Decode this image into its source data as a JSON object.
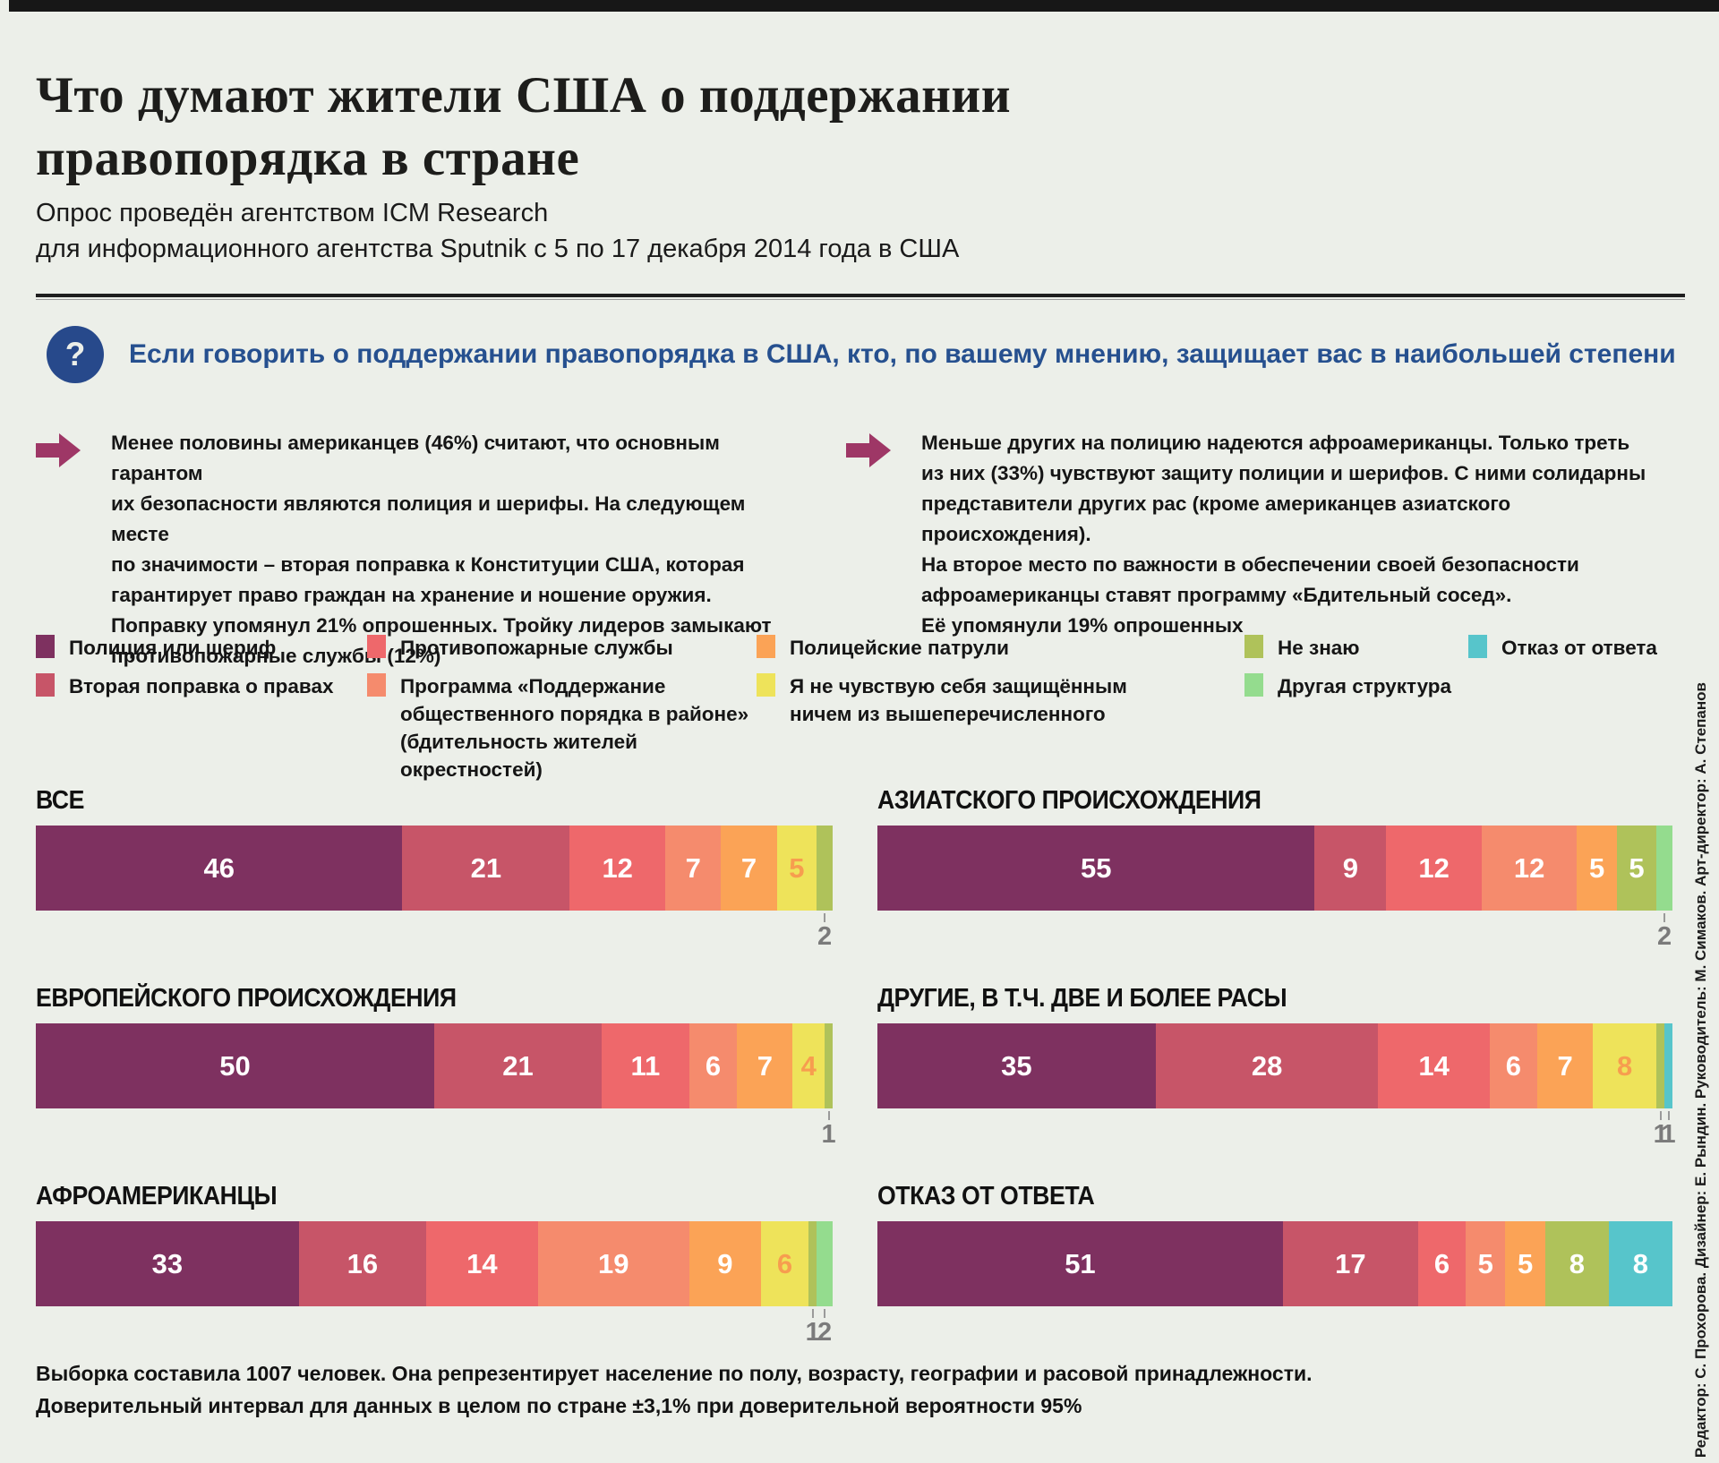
{
  "header": {
    "title_lines": [
      "Что думают жители США о поддержании",
      "правопорядка в стране"
    ],
    "subtitle_lines": [
      "Опрос проведён агентством ICM Research",
      "для информационного агентства Sputnik с 5 по 17 декабря 2014 года в США"
    ]
  },
  "question": {
    "icon": "?",
    "text": "Если говорить о поддержании правопорядка в США, кто, по вашему мнению, защищает вас в наибольшей степени"
  },
  "callouts": [
    {
      "lines": [
        "Менее половины американцев (46%) считают, что основным гарантом",
        "их безопасности являются полиция и шерифы. На следующем месте",
        "по значимости – вторая поправка к Конституции США, которая",
        "гарантирует право граждан на хранение и ношение оружия.",
        "Поправку упомянул 21% опрошенных. Тройку лидеров замыкают",
        "противопожарные службы (12%)"
      ]
    },
    {
      "lines": [
        "Меньше других на полицию надеются афроамериканцы. Только треть",
        "из них (33%) чувствуют защиту полиции и шерифов. С ними солидарны",
        "представители других рас (кроме американцев азиатского происхождения).",
        "На второе место по важности в обеспечении своей безопасности",
        "афроамериканцы ставят программу «Бдительный сосед».",
        "Её упомянули 19% опрошенных"
      ]
    }
  ],
  "colors": {
    "police": "#7e3160",
    "amendment": "#c75568",
    "fire": "#ee686b",
    "program": "#f58b6d",
    "patrol": "#fba356",
    "none": "#eee35a",
    "dontknow": "#afc25a",
    "other": "#94dc8e",
    "refuse": "#57c5cb",
    "value_on_dark": "#ffffff",
    "value_on_yellow": "#f79d4f",
    "value_below": "#7b7b7b",
    "question_blue": "#26508f",
    "arrow_magenta": "#9e3766"
  },
  "legend": {
    "columns": [
      [
        {
          "key": "police",
          "label_lines": [
            "Полиция или шериф"
          ]
        },
        {
          "key": "amendment",
          "label_lines": [
            "Вторая поправка о правах"
          ]
        }
      ],
      [
        {
          "key": "fire",
          "label_lines": [
            "Противопожарные службы"
          ]
        },
        {
          "key": "program",
          "label_lines": [
            "Программа «Поддержание",
            "общественного порядка в районе»",
            "(бдительность жителей окрестностей)"
          ]
        }
      ],
      [
        {
          "key": "patrol",
          "label_lines": [
            "Полицейские патрули"
          ]
        },
        {
          "key": "none",
          "label_lines": [
            "Я не чувствую себя защищённым",
            "ничем из вышеперечисленного"
          ]
        }
      ],
      [
        {
          "key": "dontknow",
          "label_lines": [
            "Не знаю"
          ]
        },
        {
          "key": "other",
          "label_lines": [
            "Другая структура"
          ]
        }
      ],
      [
        {
          "key": "refuse",
          "label_lines": [
            "Отказ от ответа"
          ]
        }
      ]
    ]
  },
  "chart_data": {
    "type": "bar",
    "stacked": true,
    "unit": "%",
    "axis": {
      "min": 0,
      "max": 100,
      "grid": false
    },
    "categories": [
      "Полиция или шериф",
      "Вторая поправка о правах",
      "Противопожарные службы",
      "Программа «Поддержание общественного порядка в районе» (бдительность жителей окрестностей)",
      "Полицейские патрули",
      "Я не чувствую себя защищённым ничем из вышеперечисленного",
      "Не знаю",
      "Другая структура",
      "Отказ от ответа"
    ],
    "category_keys": [
      "police",
      "amendment",
      "fire",
      "program",
      "patrol",
      "none",
      "dontknow",
      "other",
      "refuse"
    ],
    "groups": [
      {
        "label": "ВСЕ",
        "segments": [
          {
            "key": "police",
            "value": 46
          },
          {
            "key": "amendment",
            "value": 21
          },
          {
            "key": "fire",
            "value": 12
          },
          {
            "key": "program",
            "value": 7
          },
          {
            "key": "patrol",
            "value": 7
          },
          {
            "key": "none",
            "value": 5
          },
          {
            "key": "dontknow",
            "value": 2,
            "label_below": true
          }
        ]
      },
      {
        "label": "АЗИАТСКОГО ПРОИСХОЖДЕНИЯ",
        "segments": [
          {
            "key": "police",
            "value": 55
          },
          {
            "key": "amendment",
            "value": 9
          },
          {
            "key": "fire",
            "value": 12
          },
          {
            "key": "program",
            "value": 12
          },
          {
            "key": "patrol",
            "value": 5
          },
          {
            "key": "dontknow",
            "value": 5
          },
          {
            "key": "other",
            "value": 2,
            "label_below": true
          }
        ]
      },
      {
        "label": "ЕВРОПЕЙСКОГО ПРОИСХОЖДЕНИЯ",
        "segments": [
          {
            "key": "police",
            "value": 50
          },
          {
            "key": "amendment",
            "value": 21
          },
          {
            "key": "fire",
            "value": 11
          },
          {
            "key": "program",
            "value": 6
          },
          {
            "key": "patrol",
            "value": 7
          },
          {
            "key": "none",
            "value": 4
          },
          {
            "key": "dontknow",
            "value": 1,
            "label_below": true
          }
        ]
      },
      {
        "label": "ДРУГИЕ, В Т.Ч. ДВЕ И БОЛЕЕ РАСЫ",
        "segments": [
          {
            "key": "police",
            "value": 35
          },
          {
            "key": "amendment",
            "value": 28
          },
          {
            "key": "fire",
            "value": 14
          },
          {
            "key": "program",
            "value": 6
          },
          {
            "key": "patrol",
            "value": 7
          },
          {
            "key": "none",
            "value": 8
          },
          {
            "key": "dontknow",
            "value": 1,
            "label_below": true
          },
          {
            "key": "refuse",
            "value": 1,
            "label_below": true
          }
        ]
      },
      {
        "label": "АФРОАМЕРИКАНЦЫ",
        "segments": [
          {
            "key": "police",
            "value": 33
          },
          {
            "key": "amendment",
            "value": 16
          },
          {
            "key": "fire",
            "value": 14
          },
          {
            "key": "program",
            "value": 19
          },
          {
            "key": "patrol",
            "value": 9
          },
          {
            "key": "none",
            "value": 6
          },
          {
            "key": "dontknow",
            "value": 1,
            "label_below": true
          },
          {
            "key": "other",
            "value": 2,
            "label_below": true
          }
        ]
      },
      {
        "label": "ОТКАЗ ОТ ОТВЕТА",
        "segments": [
          {
            "key": "police",
            "value": 51
          },
          {
            "key": "amendment",
            "value": 17
          },
          {
            "key": "fire",
            "value": 6
          },
          {
            "key": "program",
            "value": 5
          },
          {
            "key": "patrol",
            "value": 5
          },
          {
            "key": "dontknow",
            "value": 8
          },
          {
            "key": "refuse",
            "value": 8
          }
        ]
      }
    ]
  },
  "footnote_lines": [
    "Выборка составила 1007 человек. Она репрезентирует население по полу, возрасту, географии и расовой принадлежности.",
    "Доверительный интервал для данных в целом по стране ±3,1% при доверительной вероятности 95%"
  ],
  "credits": "Редактор: С. Прохорова. Дизайнер: Е. Рындин. Руководитель: М. Симаков. Арт-директор: А. Степанов"
}
